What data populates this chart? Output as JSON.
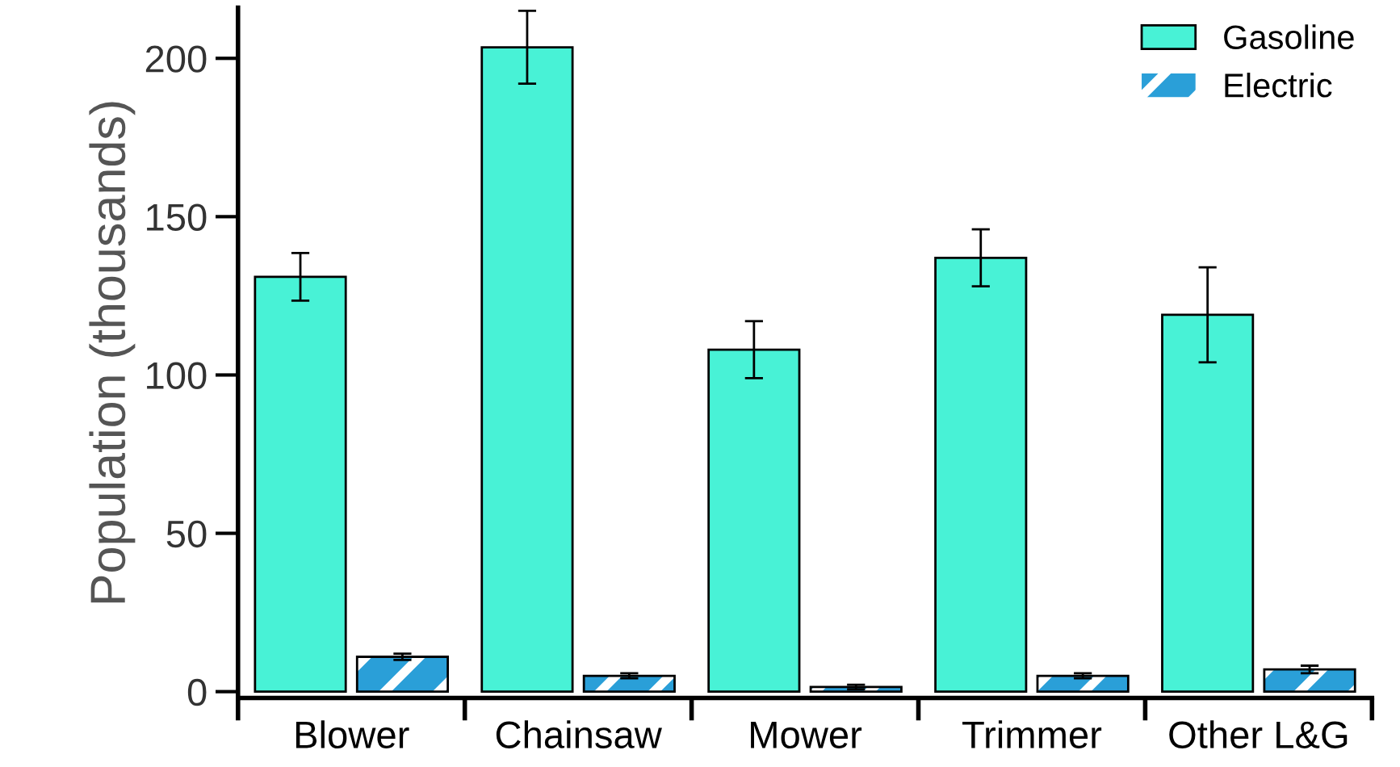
{
  "chart_data": {
    "type": "bar",
    "ylabel": "Population (thousands)",
    "categories": [
      "Blower",
      "Chainsaw",
      "Mower",
      "Trimmer",
      "Other L&G"
    ],
    "series": [
      {
        "name": "Gasoline",
        "color": "#48f2d6",
        "values": [
          131,
          203.5,
          108,
          137,
          119
        ],
        "errors": [
          7.5,
          11.5,
          9,
          9,
          15
        ]
      },
      {
        "name": "Electric",
        "color": "#2a9fd8",
        "values": [
          11,
          5,
          1.5,
          5,
          7
        ],
        "errors": [
          1,
          0.8,
          0.7,
          0.8,
          1.2
        ]
      }
    ],
    "ylim": [
      -2,
      216
    ],
    "yticks": [
      0,
      50,
      100,
      150,
      200
    ],
    "grid": false,
    "legend": "top right"
  }
}
